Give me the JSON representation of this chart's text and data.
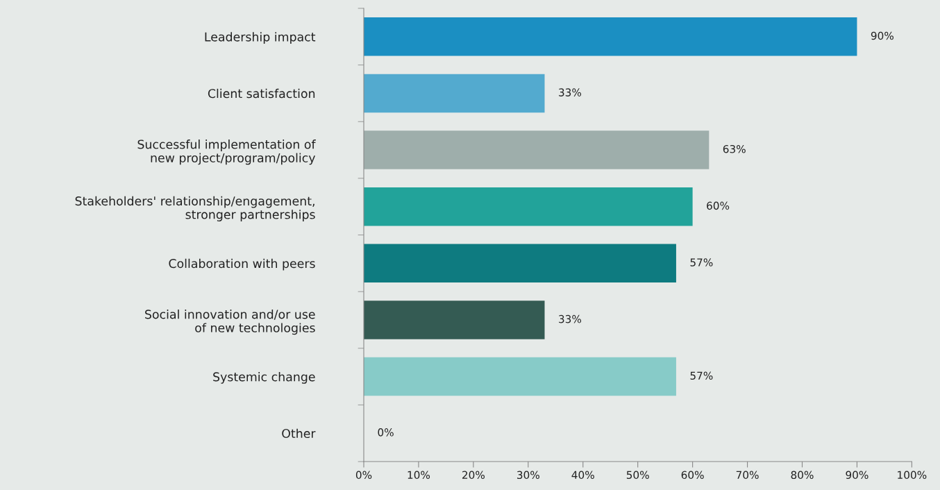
{
  "chart_data": {
    "type": "bar",
    "orientation": "horizontal",
    "categories": [
      "Leadership impact",
      "Client satisfaction",
      "Successful implementation of\nnew project/program/policy",
      "Stakeholders' relationship/engagement,\nstronger partnerships",
      "Collaboration with peers",
      "Social innovation and/or use\nof new technologies",
      "Systemic change",
      "Other"
    ],
    "values": [
      90,
      33,
      63,
      60,
      57,
      33,
      57,
      0
    ],
    "value_labels": [
      "90%",
      "33%",
      "63%",
      "60%",
      "57%",
      "33%",
      "57%",
      "0%"
    ],
    "colors": [
      "#1b8fc2",
      "#53aacf",
      "#9eaeab",
      "#22a39a",
      "#0e7b80",
      "#345b53",
      "#87cbc8",
      "#87cbc8"
    ],
    "xlim": [
      0,
      100
    ],
    "xticks": [
      {
        "value": 0,
        "label": "0%"
      },
      {
        "value": 10,
        "label": "10%"
      },
      {
        "value": 20,
        "label": "20%"
      },
      {
        "value": 30,
        "label": "30%"
      },
      {
        "value": 40,
        "label": "40%"
      },
      {
        "value": 50,
        "label": "50%"
      },
      {
        "value": 60,
        "label": "60%"
      },
      {
        "value": 70,
        "label": "70%"
      },
      {
        "value": 80,
        "label": "80%"
      },
      {
        "value": 90,
        "label": "90%"
      },
      {
        "value": 100,
        "label": "100%"
      }
    ],
    "grid": false,
    "legend": false
  }
}
